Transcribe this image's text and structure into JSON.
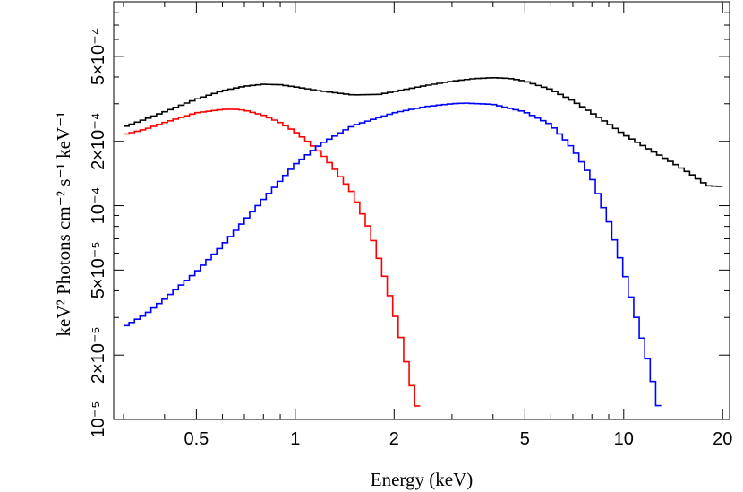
{
  "chart_data": {
    "type": "line",
    "xscale": "log",
    "yscale": "log",
    "xlim": [
      0.28,
      21
    ],
    "ylim": [
      1e-05,
      0.0009
    ],
    "xlabel": "Energy (keV)",
    "ylabel": "keV² Photons cm⁻² s⁻¹ keV⁻¹",
    "grid": false,
    "x_ticks": [
      {
        "value": 0.5,
        "label": "0.5"
      },
      {
        "value": 1,
        "label": "1"
      },
      {
        "value": 2,
        "label": "2"
      },
      {
        "value": 5,
        "label": "5"
      },
      {
        "value": 10,
        "label": "10"
      },
      {
        "value": 20,
        "label": "20"
      }
    ],
    "y_ticks": [
      {
        "value": 1e-05,
        "label": "10⁻⁵"
      },
      {
        "value": 2e-05,
        "label": "2×10⁻⁵"
      },
      {
        "value": 5e-05,
        "label": "5×10⁻⁵"
      },
      {
        "value": 0.0001,
        "label": "10⁻⁴"
      },
      {
        "value": 0.0002,
        "label": "2×10⁻⁴"
      },
      {
        "value": 0.0005,
        "label": "5×10⁻⁴"
      }
    ],
    "series": [
      {
        "color": "#000000",
        "x": [
          0.3,
          0.35,
          0.4,
          0.5,
          0.6,
          0.7,
          0.8,
          0.9,
          1.0,
          1.2,
          1.5,
          1.8,
          2.0,
          2.5,
          3.0,
          3.5,
          4.0,
          4.5,
          5.0,
          6.0,
          7.0,
          8.0,
          9.0,
          10.0,
          12.0,
          14.0,
          16.0,
          18.0,
          20.0
        ],
        "y": [
          0.000233,
          0.000254,
          0.000275,
          0.000315,
          0.000345,
          0.000362,
          0.00037,
          0.000368,
          0.00036,
          0.000344,
          0.00033,
          0.000332,
          0.000342,
          0.000365,
          0.000382,
          0.000393,
          0.000397,
          0.000394,
          0.000383,
          0.00035,
          0.00031,
          0.000272,
          0.000242,
          0.000216,
          0.000183,
          0.00016,
          0.000141,
          0.000124,
          0.000123
        ]
      },
      {
        "color": "#ff0000",
        "x": [
          0.3,
          0.35,
          0.4,
          0.5,
          0.6,
          0.65,
          0.7,
          0.8,
          0.9,
          1.0,
          1.1,
          1.2,
          1.3,
          1.5,
          1.7,
          1.9,
          2.0,
          2.1,
          2.2,
          2.3,
          2.4
        ],
        "y": [
          0.000215,
          0.000228,
          0.000245,
          0.000272,
          0.000282,
          0.000283,
          0.00028,
          0.000265,
          0.000245,
          0.000222,
          0.000198,
          0.000176,
          0.000153,
          0.000114,
          7.5e-05,
          4.3e-05,
          3.2e-05,
          2.4e-05,
          1.75e-05,
          1.3e-05,
          1.05e-05
        ]
      },
      {
        "color": "#0000ff",
        "x": [
          0.3,
          0.35,
          0.4,
          0.5,
          0.6,
          0.7,
          0.8,
          1.0,
          1.2,
          1.5,
          2.0,
          2.5,
          3.0,
          3.3,
          4.0,
          5.0,
          6.0,
          7.0,
          8.0,
          9.0,
          10.0,
          11.0,
          12.0,
          13.0
        ],
        "y": [
          2.7e-05,
          3.1e-05,
          3.65e-05,
          4.9e-05,
          6.5e-05,
          8.5e-05,
          0.000107,
          0.000156,
          0.000195,
          0.000237,
          0.000272,
          0.000291,
          0.0003,
          0.000302,
          0.000298,
          0.000275,
          0.00024,
          0.000186,
          0.000135,
          8.5e-05,
          5e-05,
          2.9e-05,
          1.75e-05,
          1.02e-05
        ]
      }
    ]
  }
}
